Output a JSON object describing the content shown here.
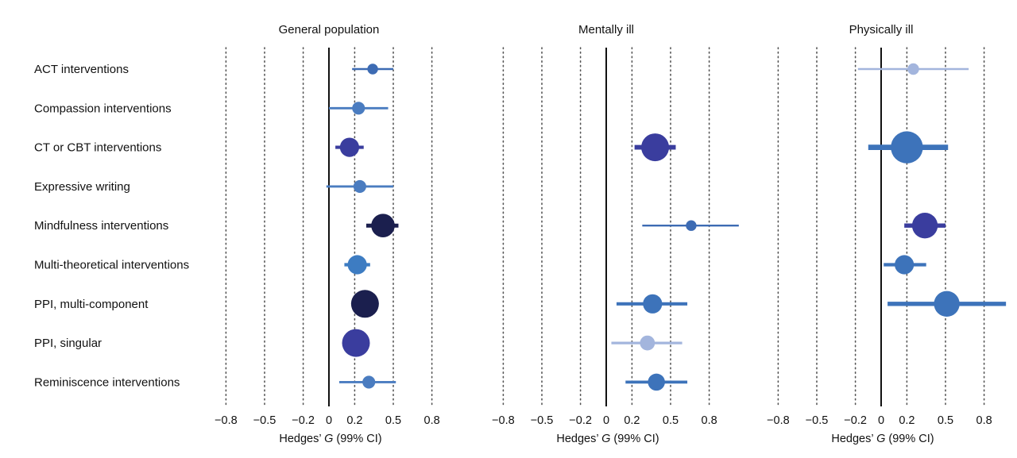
{
  "chart_data": [
    {
      "type": "forest",
      "title": "General population",
      "xlabel_prefix": "Hedges’ ",
      "xlabel_var": "G",
      "xlabel_suffix": " (99% CI)",
      "xticks": [
        -0.8,
        -0.5,
        -0.2,
        0,
        0.2,
        0.5,
        0.8
      ],
      "xtick_labels": [
        "−0.8",
        "−0.5",
        "−0.2",
        "0",
        "0.2",
        "0.5",
        "0.8"
      ],
      "grid": "dotted vertical at ticks",
      "categories": [
        "ACT interventions",
        "Compassion interventions",
        "CT or CBT interventions",
        "Expressive writing",
        "Mindfulness interventions",
        "Multi-theoretical interventions",
        "PPI, multi-component",
        "PPI, singular",
        "Reminiscence interventions"
      ],
      "points": [
        {
          "category": "ACT interventions",
          "g": 0.34,
          "ci": [
            0.18,
            0.5
          ],
          "color": "#3d6bb3",
          "weight": 1
        },
        {
          "category": "Compassion interventions",
          "g": 0.23,
          "ci": [
            0.0,
            0.46
          ],
          "color": "#4a7cc0",
          "weight": 1.5
        },
        {
          "category": "CT or CBT interventions",
          "g": 0.16,
          "ci": [
            0.05,
            0.27
          ],
          "color": "#3a3d9e",
          "weight": 3
        },
        {
          "category": "Expressive writing",
          "g": 0.24,
          "ci": [
            -0.02,
            0.5
          ],
          "color": "#4a7cc0",
          "weight": 1.5
        },
        {
          "category": "Mindfulness interventions",
          "g": 0.42,
          "ci": [
            0.29,
            0.54
          ],
          "color": "#1b1f4e",
          "weight": 4
        },
        {
          "category": "Multi-theoretical interventions",
          "g": 0.22,
          "ci": [
            0.12,
            0.32
          ],
          "color": "#3d7cc2",
          "weight": 3
        },
        {
          "category": "PPI, multi-component",
          "g": 0.28,
          "ci": [
            0.2,
            0.36
          ],
          "color": "#1b1f4e",
          "weight": 5
        },
        {
          "category": "PPI, singular",
          "g": 0.21,
          "ci": [
            0.13,
            0.29
          ],
          "color": "#3a3d9e",
          "weight": 5
        },
        {
          "category": "Reminiscence interventions",
          "g": 0.31,
          "ci": [
            0.08,
            0.52
          ],
          "color": "#4a7cc0",
          "weight": 1.5
        }
      ]
    },
    {
      "type": "forest",
      "title": "Mentally ill",
      "xlabel_prefix": "Hedges’ ",
      "xlabel_var": "G",
      "xlabel_suffix": " (99% CI)",
      "xticks": [
        -0.8,
        -0.5,
        -0.2,
        0,
        0.2,
        0.5,
        0.8
      ],
      "xtick_labels": [
        "−0.8",
        "−0.5",
        "−0.2",
        "0",
        "0.2",
        "0.5",
        "0.8"
      ],
      "grid": "dotted vertical at ticks",
      "points": [
        {
          "category": "CT or CBT interventions",
          "g": 0.38,
          "ci": [
            0.22,
            0.54
          ],
          "color": "#3a3d9e",
          "weight": 5
        },
        {
          "category": "Mindfulness interventions",
          "g": 0.66,
          "ci": [
            0.28,
            1.03
          ],
          "color": "#3d6bb3",
          "weight": 1
        },
        {
          "category": "PPI, multi-component",
          "g": 0.36,
          "ci": [
            0.08,
            0.63
          ],
          "color": "#3d73ba",
          "weight": 3
        },
        {
          "category": "PPI, singular",
          "g": 0.32,
          "ci": [
            0.04,
            0.59
          ],
          "color": "#a3b5dd",
          "weight": 2
        },
        {
          "category": "Reminiscence interventions",
          "g": 0.39,
          "ci": [
            0.15,
            0.63
          ],
          "color": "#3d73ba",
          "weight": 2.5
        }
      ]
    },
    {
      "type": "forest",
      "title": "Physically ill",
      "xlabel_prefix": "Hedges’ ",
      "xlabel_var": "G",
      "xlabel_suffix": " (99% CI)",
      "xticks": [
        -0.8,
        -0.5,
        -0.2,
        0,
        0.2,
        0.5,
        0.8
      ],
      "xtick_labels": [
        "−0.8",
        "−0.5",
        "−0.2",
        "0",
        "0.2",
        "0.5",
        "0.8"
      ],
      "grid": "dotted vertical at ticks",
      "points": [
        {
          "category": "ACT interventions",
          "g": 0.25,
          "ci": [
            -0.18,
            0.68
          ],
          "color": "#a3b5dd",
          "weight": 1.2
        },
        {
          "category": "CT or CBT interventions",
          "g": 0.2,
          "ci": [
            -0.1,
            0.52
          ],
          "color": "#3d73ba",
          "weight": 6
        },
        {
          "category": "Mindfulness interventions",
          "g": 0.34,
          "ci": [
            0.18,
            0.5
          ],
          "color": "#3a3d9e",
          "weight": 4.5
        },
        {
          "category": "Multi-theoretical interventions",
          "g": 0.18,
          "ci": [
            0.02,
            0.35
          ],
          "color": "#3d73ba",
          "weight": 3
        },
        {
          "category": "PPI, multi-component",
          "g": 0.51,
          "ci": [
            0.05,
            0.97
          ],
          "color": "#3d73ba",
          "weight": 4.5
        }
      ]
    }
  ]
}
